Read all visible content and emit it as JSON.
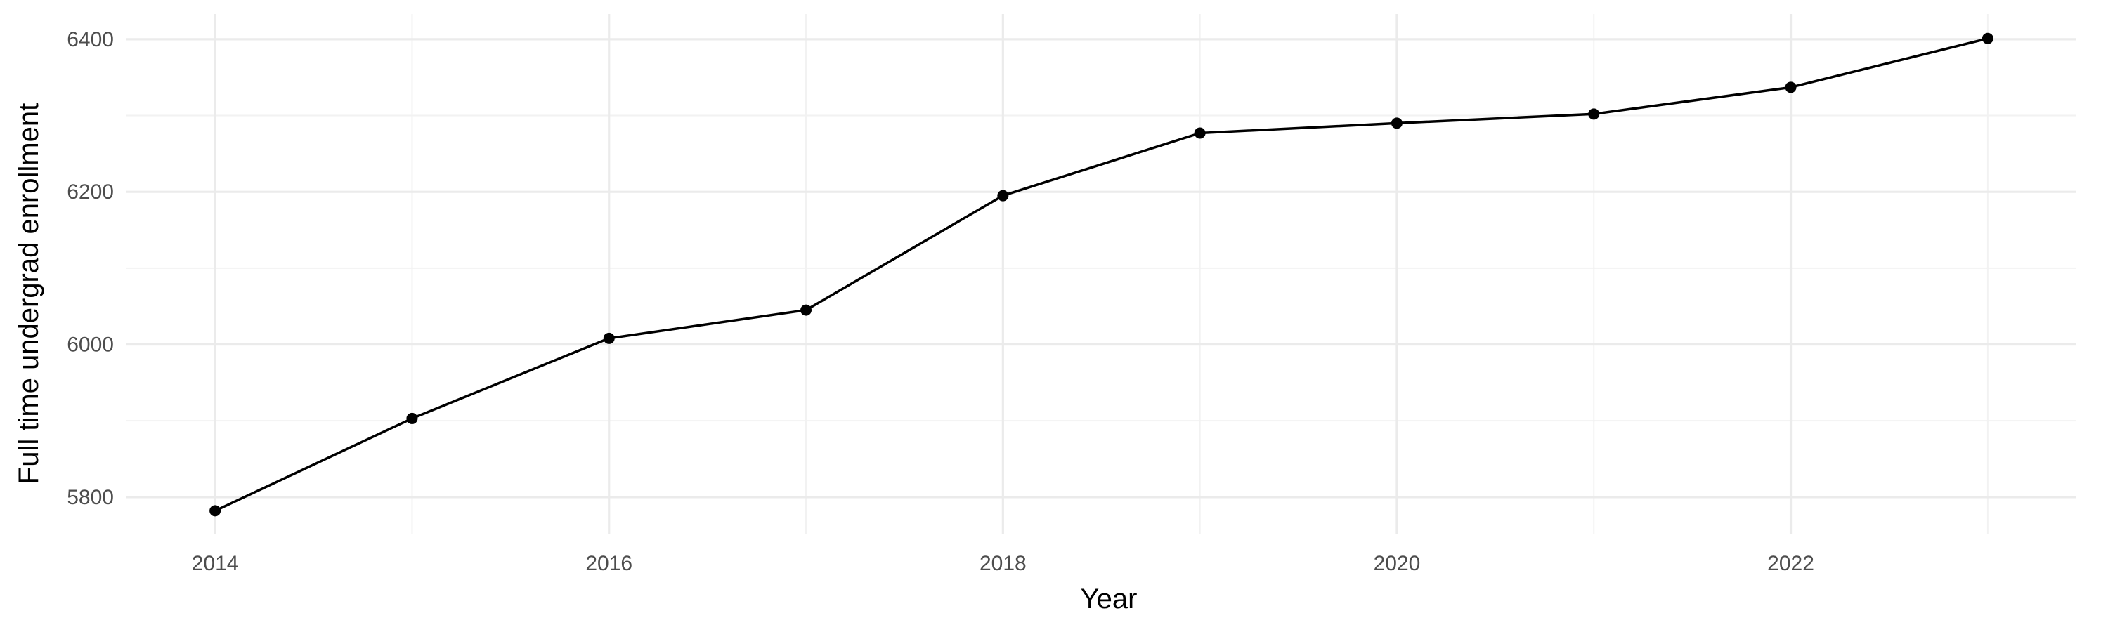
{
  "chart_data": {
    "type": "line",
    "title": "",
    "xlabel": "Year",
    "ylabel": "Full time undergrad enrollment",
    "x": [
      2014,
      2015,
      2016,
      2017,
      2018,
      2019,
      2020,
      2021,
      2022,
      2023
    ],
    "series": [
      {
        "values": [
          5782,
          5903,
          6008,
          6045,
          6195,
          6277,
          6290,
          6302,
          6337,
          6401
        ]
      }
    ],
    "xlim": [
      2013.55,
      2023.45
    ],
    "ylim": [
      5752,
      6433
    ],
    "x_ticks": [
      2014,
      2016,
      2018,
      2020,
      2022
    ],
    "y_ticks": [
      5800,
      6000,
      6200,
      6400
    ],
    "x_tick_labels": [
      "2014",
      "2016",
      "2018",
      "2020",
      "2022"
    ],
    "y_tick_labels": [
      "5800",
      "6000",
      "6200",
      "6400"
    ],
    "grid": true,
    "legend": "none",
    "colors": {
      "line": "#000000",
      "points": "#000000",
      "grid_major": "#ebebeb",
      "grid_minor": "#f2f2f2",
      "tick_text": "#4d4d4d"
    }
  }
}
